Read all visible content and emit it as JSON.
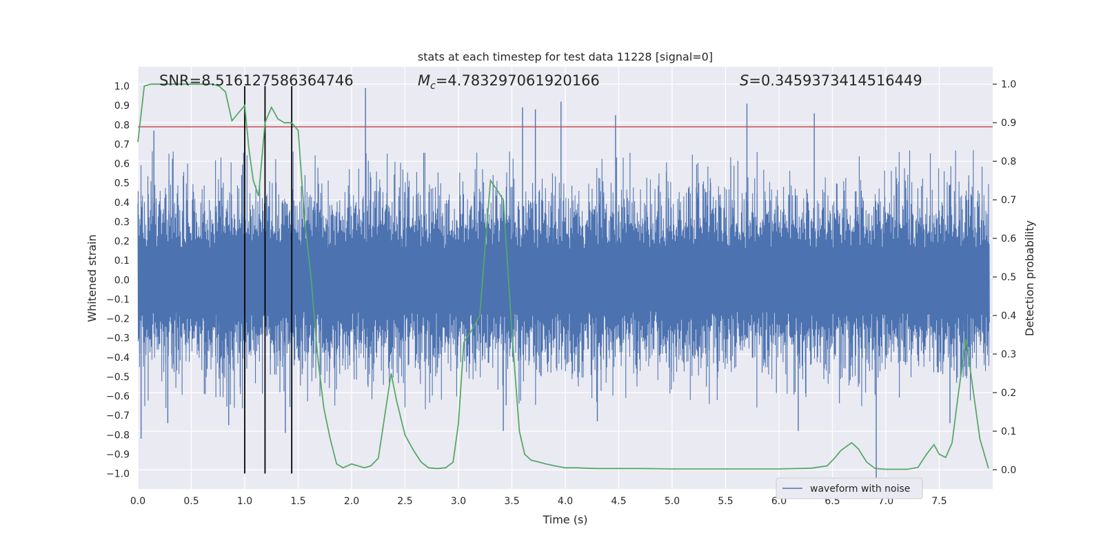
{
  "chart_data": {
    "type": "line",
    "title": "stats at each timestep for test data 11228 [signal=0]",
    "xlabel": "Time (s)",
    "ylabel_left": "Whitened strain",
    "ylabel_right": "Detection probability",
    "xlim": [
      0.0,
      8.0
    ],
    "ylim_left": [
      -1.08,
      1.1
    ],
    "ylim_right": [
      -0.05,
      1.045
    ],
    "x_ticks": [
      "0.0",
      "0.5",
      "1.0",
      "1.5",
      "2.0",
      "2.5",
      "3.0",
      "3.5",
      "4.0",
      "4.5",
      "5.0",
      "5.5",
      "6.0",
      "6.5",
      "7.0",
      "7.5"
    ],
    "y_ticks_left": [
      "1.0",
      "0.9",
      "0.8",
      "0.7",
      "0.6",
      "0.5",
      "0.4",
      "0.3",
      "0.2",
      "0.1",
      "0.0",
      "−0.1",
      "−0.2",
      "−0.3",
      "−0.4",
      "−0.5",
      "−0.6",
      "−0.7",
      "−0.8",
      "−0.9",
      "−1.0"
    ],
    "y_ticks_right": [
      "1.0",
      "0.9",
      "0.8",
      "0.7",
      "0.6",
      "0.5",
      "0.4",
      "0.3",
      "0.2",
      "0.1",
      "0.0"
    ],
    "grid": true,
    "legend": {
      "position": "lower-right",
      "entries": [
        "waveform with noise"
      ]
    },
    "annotations": {
      "snr": "SNR=8.516127586364746",
      "mc_symbol": "M",
      "mc_sub": "c",
      "mc_value": "=4.783297061920166",
      "s_symbol": "S",
      "s_value": "=0.3459373414516449"
    },
    "threshold_left": 0.79,
    "vertical_markers": [
      1.0,
      1.19,
      1.44
    ],
    "series": [
      {
        "name": "waveform with noise",
        "color": "#4c72b0",
        "description_values": "dense noise roughly within [-0.6, 0.6]",
        "spikes": [
          {
            "x": 0.03,
            "y": -0.82
          },
          {
            "x": 0.15,
            "y": 0.77
          },
          {
            "x": 0.28,
            "y": -0.74
          },
          {
            "x": 0.85,
            "y": -0.75
          },
          {
            "x": 1.38,
            "y": -0.79
          },
          {
            "x": 2.13,
            "y": 0.99
          },
          {
            "x": 3.42,
            "y": -0.78
          },
          {
            "x": 3.6,
            "y": 0.89
          },
          {
            "x": 3.72,
            "y": 0.88
          },
          {
            "x": 3.96,
            "y": 0.92
          },
          {
            "x": 4.3,
            "y": -0.73
          },
          {
            "x": 4.47,
            "y": 0.85
          },
          {
            "x": 5.7,
            "y": 0.91
          },
          {
            "x": 6.18,
            "y": -0.78
          },
          {
            "x": 6.33,
            "y": 0.86
          },
          {
            "x": 6.91,
            "y": -1.05
          },
          {
            "x": 7.6,
            "y": -0.74
          }
        ]
      },
      {
        "name": "",
        "color": "#55a868",
        "x": [
          0.0,
          0.06,
          0.12,
          0.2,
          0.3,
          0.4,
          0.5,
          0.6,
          0.7,
          0.76,
          0.82,
          0.88,
          0.94,
          1.0,
          1.04,
          1.08,
          1.13,
          1.19,
          1.25,
          1.31,
          1.37,
          1.44,
          1.5,
          1.56,
          1.62,
          1.68,
          1.74,
          1.8,
          1.86,
          1.92,
          2.0,
          2.06,
          2.12,
          2.18,
          2.25,
          2.37,
          2.42,
          2.5,
          2.58,
          2.65,
          2.72,
          2.8,
          2.88,
          2.95,
          3.0,
          3.05,
          3.12,
          3.2,
          3.25,
          3.3,
          3.35,
          3.42,
          3.5,
          3.57,
          3.62,
          3.68,
          3.75,
          3.82,
          3.9,
          4.0,
          4.1,
          4.2,
          4.3,
          4.5,
          4.7,
          5.0,
          5.5,
          6.0,
          6.3,
          6.45,
          6.52,
          6.58,
          6.68,
          6.74,
          6.82,
          6.9,
          7.0,
          7.2,
          7.3,
          7.38,
          7.45,
          7.5,
          7.56,
          7.62,
          7.68,
          7.75,
          7.82,
          7.88,
          7.96
        ],
        "y": [
          0.85,
          0.995,
          1.0,
          1.0,
          1.0,
          1.0,
          1.0,
          1.0,
          1.0,
          0.995,
          0.98,
          0.905,
          0.925,
          0.945,
          0.83,
          0.75,
          0.71,
          0.9,
          0.94,
          0.91,
          0.9,
          0.9,
          0.88,
          0.65,
          0.5,
          0.3,
          0.16,
          0.08,
          0.015,
          0.005,
          0.015,
          0.01,
          0.005,
          0.01,
          0.03,
          0.25,
          0.18,
          0.09,
          0.05,
          0.02,
          0.005,
          0.003,
          0.005,
          0.02,
          0.12,
          0.33,
          0.36,
          0.4,
          0.58,
          0.75,
          0.73,
          0.7,
          0.36,
          0.1,
          0.04,
          0.025,
          0.02,
          0.015,
          0.01,
          0.005,
          0.005,
          0.004,
          0.003,
          0.003,
          0.003,
          0.002,
          0.002,
          0.002,
          0.004,
          0.01,
          0.03,
          0.05,
          0.07,
          0.055,
          0.02,
          0.003,
          0.001,
          0.001,
          0.006,
          0.04,
          0.065,
          0.04,
          0.032,
          0.07,
          0.2,
          0.34,
          0.2,
          0.08,
          0.004
        ]
      }
    ]
  }
}
